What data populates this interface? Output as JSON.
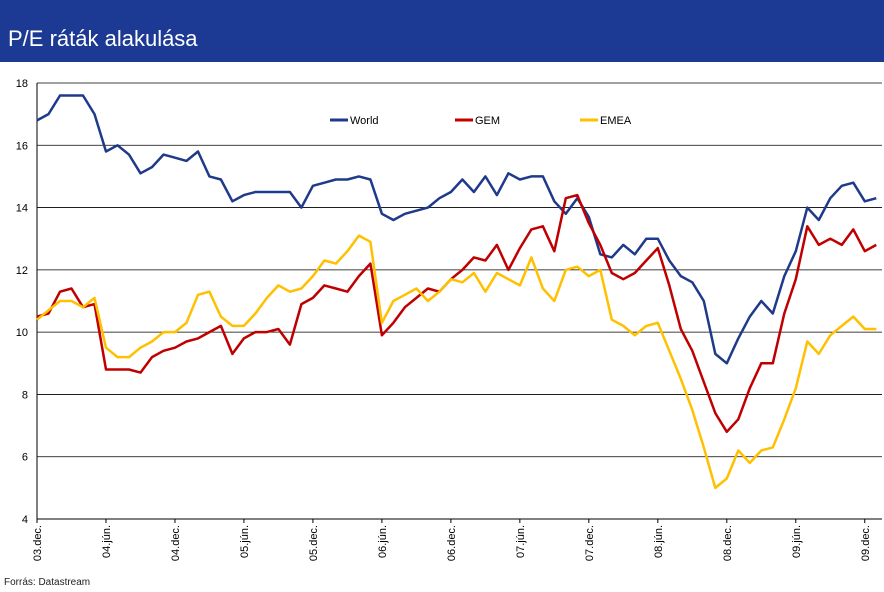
{
  "header": {
    "title": "P/E ráták alakulása"
  },
  "chart_data": {
    "type": "line",
    "categories": [
      "03.dec.",
      null,
      null,
      null,
      null,
      null,
      "04.jún.",
      null,
      null,
      null,
      null,
      null,
      "04.dec.",
      null,
      null,
      null,
      null,
      null,
      "05.jún.",
      null,
      null,
      null,
      null,
      null,
      "05.dec.",
      null,
      null,
      null,
      null,
      null,
      "06.jún.",
      null,
      null,
      null,
      null,
      null,
      "06.dec.",
      null,
      null,
      null,
      null,
      null,
      "07.jún.",
      null,
      null,
      null,
      null,
      null,
      "07.dec.",
      null,
      null,
      null,
      null,
      null,
      "08.jún.",
      null,
      null,
      null,
      null,
      null,
      "08.dec.",
      null,
      null,
      null,
      null,
      null,
      "09.jún.",
      null,
      null,
      null,
      null,
      null,
      "09.dec.",
      null
    ],
    "series": [
      {
        "name": "World",
        "color": "#1f3a8a",
        "values": [
          16.8,
          17.0,
          17.6,
          17.6,
          17.6,
          17.0,
          15.8,
          16.0,
          15.7,
          15.1,
          15.3,
          15.7,
          15.6,
          15.5,
          15.8,
          15.0,
          14.9,
          14.2,
          14.4,
          14.5,
          14.5,
          14.5,
          14.5,
          14.0,
          14.7,
          14.8,
          14.9,
          14.9,
          15.0,
          14.9,
          13.8,
          13.6,
          13.8,
          13.9,
          14.0,
          14.3,
          14.5,
          14.9,
          14.5,
          15.0,
          14.4,
          15.1,
          14.9,
          15.0,
          15.0,
          14.2,
          13.8,
          14.3,
          13.7,
          12.5,
          12.4,
          12.8,
          12.5,
          13.0,
          13.0,
          12.3,
          11.8,
          11.6,
          11.0,
          9.3,
          9.0,
          9.8,
          10.5,
          11.0,
          10.6,
          11.8,
          12.6,
          14.0,
          13.6,
          14.3,
          14.7,
          14.8,
          14.2,
          14.3
        ]
      },
      {
        "name": "GEM",
        "color": "#c00000",
        "values": [
          10.5,
          10.6,
          11.3,
          11.4,
          10.8,
          10.9,
          8.8,
          8.8,
          8.8,
          8.7,
          9.2,
          9.4,
          9.5,
          9.7,
          9.8,
          10.0,
          10.2,
          9.3,
          9.8,
          10.0,
          10.0,
          10.1,
          9.6,
          10.9,
          11.1,
          11.5,
          11.4,
          11.3,
          11.8,
          12.2,
          9.9,
          10.3,
          10.8,
          11.1,
          11.4,
          11.3,
          11.7,
          12.0,
          12.4,
          12.3,
          12.8,
          12.0,
          12.7,
          13.3,
          13.4,
          12.6,
          14.3,
          14.4,
          13.5,
          12.8,
          11.9,
          11.7,
          11.9,
          12.3,
          12.7,
          11.5,
          10.1,
          9.4,
          8.4,
          7.4,
          6.8,
          7.2,
          8.2,
          9.0,
          9.0,
          10.6,
          11.7,
          13.4,
          12.8,
          13.0,
          12.8,
          13.3,
          12.6,
          12.8
        ]
      },
      {
        "name": "EMEA",
        "color": "#ffc000",
        "values": [
          10.4,
          10.7,
          11.0,
          11.0,
          10.8,
          11.1,
          9.5,
          9.2,
          9.2,
          9.5,
          9.7,
          10.0,
          10.0,
          10.3,
          11.2,
          11.3,
          10.5,
          10.2,
          10.2,
          10.6,
          11.1,
          11.5,
          11.3,
          11.4,
          11.8,
          12.3,
          12.2,
          12.6,
          13.1,
          12.9,
          10.3,
          11.0,
          11.2,
          11.4,
          11.0,
          11.3,
          11.7,
          11.6,
          11.9,
          11.3,
          11.9,
          11.7,
          11.5,
          12.4,
          11.4,
          11.0,
          12.0,
          12.1,
          11.8,
          12.0,
          10.4,
          10.2,
          9.9,
          10.2,
          10.3,
          9.4,
          8.5,
          7.5,
          6.3,
          5.0,
          5.3,
          6.2,
          5.8,
          6.2,
          6.3,
          7.2,
          8.2,
          9.7,
          9.3,
          9.9,
          10.2,
          10.5,
          10.1,
          10.1
        ]
      }
    ],
    "ylim": [
      4,
      18
    ],
    "yticks": [
      4,
      6,
      8,
      10,
      12,
      14,
      16,
      18
    ],
    "grid": true,
    "legend": "top"
  },
  "footer": {
    "source": "Forrás: Datastream"
  }
}
